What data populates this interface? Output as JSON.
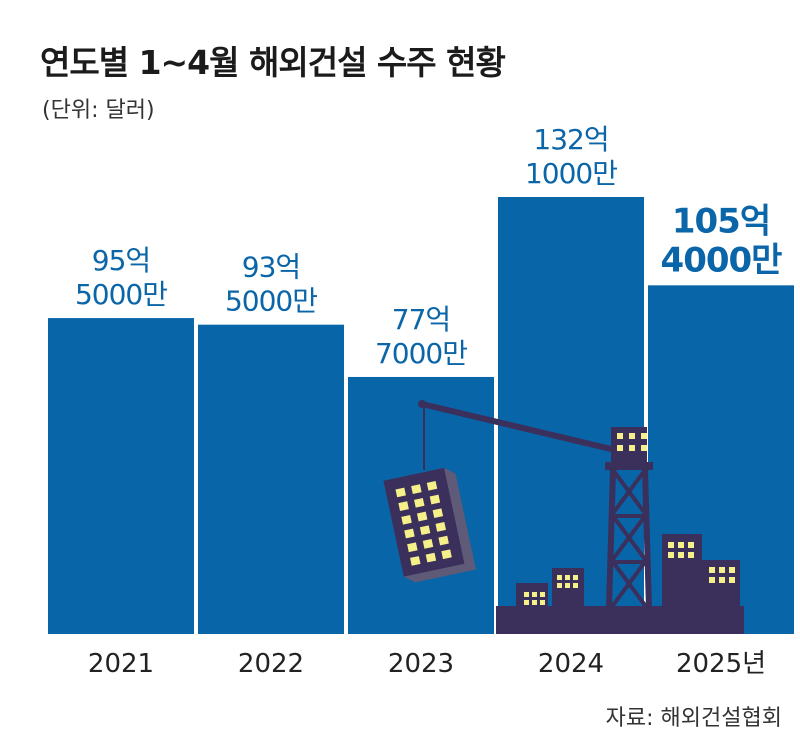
{
  "header": {
    "title": "연도별 1~4월 해외건설 수주 현황",
    "unit": "(단위: 달러)"
  },
  "footer": {
    "source": "자료: 해외건설협회"
  },
  "colors": {
    "bar": "#0865a8",
    "label": "#0a66a8",
    "city": "#3b2f5c",
    "window": "#f6f08a"
  },
  "illustration": {
    "description_icons": [
      "crane-icon",
      "building-icon",
      "skyline-icon"
    ]
  },
  "chart_data": {
    "type": "bar",
    "categories": [
      "2021",
      "2022",
      "2023",
      "2024",
      "2025년"
    ],
    "values": [
      95.5,
      93.5,
      77.7,
      132.1,
      105.4
    ],
    "value_labels": [
      [
        "95억",
        "5000만"
      ],
      [
        "93억",
        "5000만"
      ],
      [
        "77억",
        "7000만"
      ],
      [
        "132억",
        "1000만"
      ],
      [
        "105억",
        "4000만"
      ]
    ],
    "title": "연도별 1~4월 해외건설 수주 현황",
    "ylabel": "",
    "unit": "억 달러",
    "ylim": [
      0,
      150
    ],
    "grid": false,
    "highlight_last": true
  }
}
